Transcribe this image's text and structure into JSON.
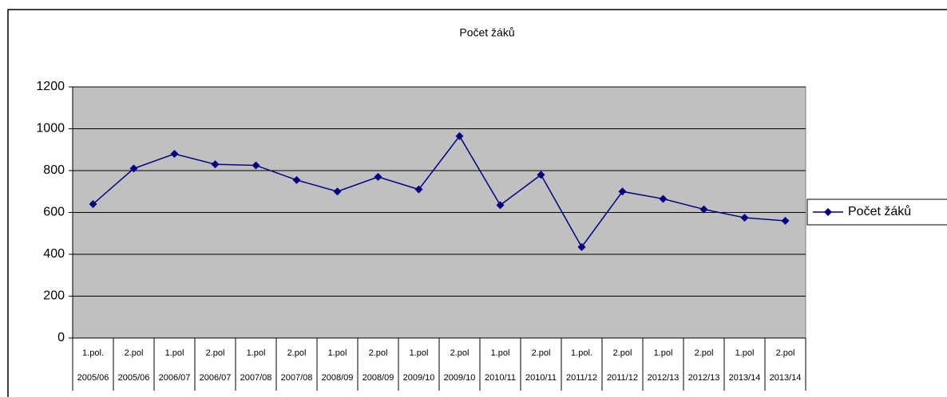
{
  "chart_data": {
    "type": "line",
    "title": "Počet žáků",
    "categories": [
      "1.pol.",
      "2.pol",
      "1.pol",
      "2.pol",
      "1.pol",
      "2.pol",
      "1.pol",
      "2.pol",
      "1.pol",
      "2.pol",
      "1.pol",
      "2.pol",
      "1.pol.",
      "2.pol",
      "1.pol",
      "2.pol",
      "1.pol",
      "2.pol"
    ],
    "category_groups": [
      "2005/06",
      "2005/06",
      "2006/07",
      "2006/07",
      "2007/08",
      "2007/08",
      "2008/09",
      "2008/09",
      "2009/10",
      "2009/10",
      "2010/11",
      "2010/11",
      "2011/12",
      "2011/12",
      "2012/13",
      "2012/13",
      "2013/14",
      "2013/14"
    ],
    "series": [
      {
        "name": "Počet žáků",
        "color": "#000080",
        "values": [
          640,
          810,
          880,
          830,
          825,
          755,
          700,
          770,
          710,
          965,
          635,
          780,
          435,
          700,
          665,
          615,
          575,
          560
        ]
      }
    ],
    "ylim": [
      0,
      1200
    ],
    "yticks": [
      0,
      200,
      400,
      600,
      800,
      1000,
      1200
    ],
    "grid": true,
    "legend": "right",
    "plot_background": "#c0c0c0"
  }
}
